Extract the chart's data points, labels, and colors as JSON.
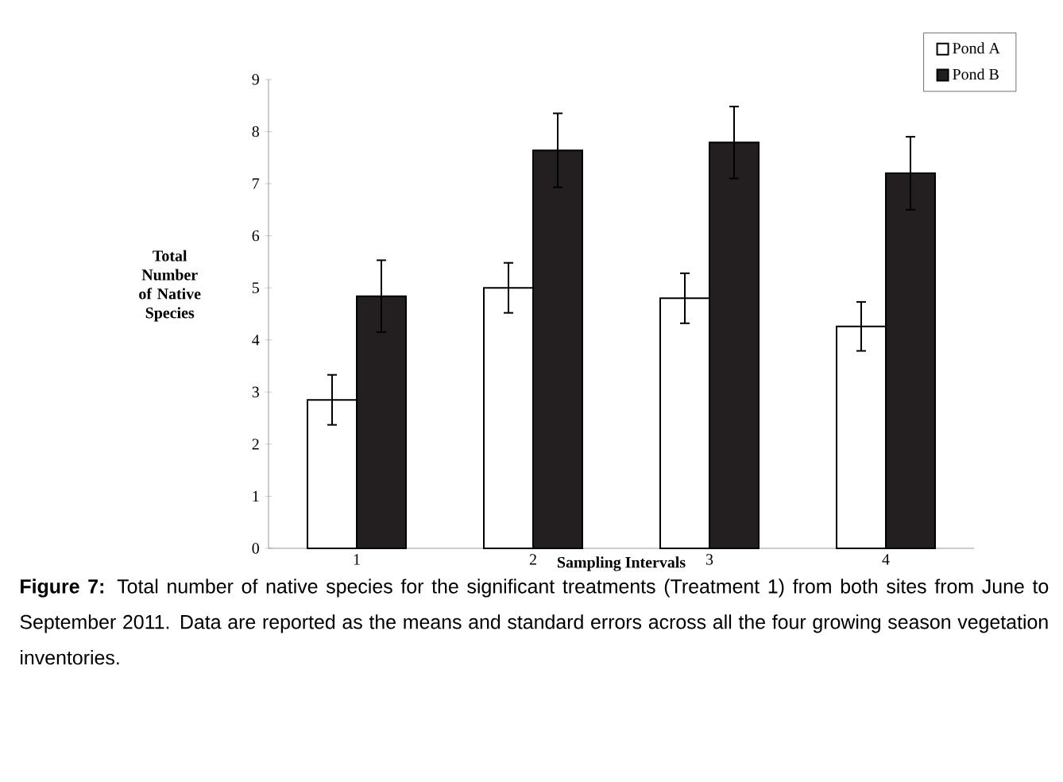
{
  "chart_data": {
    "type": "bar",
    "xlabel": "Sampling Intervals",
    "ylabel": "Total Number of Native Species",
    "categories": [
      "1",
      "2",
      "3",
      "4"
    ],
    "series": [
      {
        "name": "Pond A",
        "color": "#ffffff",
        "values": [
          2.85,
          5.0,
          4.8,
          4.26
        ],
        "errors": [
          0.48,
          0.48,
          0.48,
          0.47
        ]
      },
      {
        "name": "Pond B",
        "color": "#231f20",
        "values": [
          4.84,
          7.64,
          7.79,
          7.2
        ],
        "errors": [
          0.69,
          0.71,
          0.69,
          0.7
        ]
      }
    ],
    "ylim": [
      0,
      9
    ],
    "yticks": [
      0,
      1,
      2,
      3,
      4,
      5,
      6,
      7,
      8,
      9
    ],
    "legend": "top right",
    "grid": false,
    "annotations": [
      "**Figure 7:** Total number of native species for the significant treatments (Treatment 1) from both sites from June to September 2011. Data are reported as the means and standard errors across all the four growing season vegetation inventories."
    ]
  }
}
